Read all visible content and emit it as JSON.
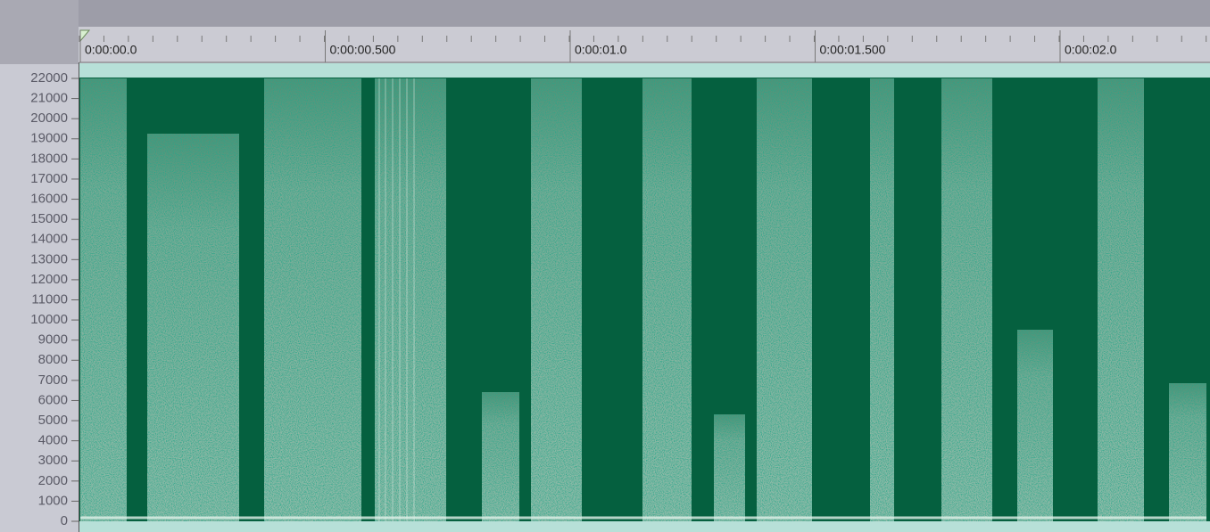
{
  "time_ruler": {
    "labels": [
      "0:00:00.0",
      "0:00:00.500",
      "0:00:01.0",
      "0:00:01.500",
      "0:00:02.0"
    ]
  },
  "frequency_axis": {
    "labels": [
      22000,
      21000,
      20000,
      19000,
      18000,
      17000,
      16000,
      15000,
      14000,
      13000,
      12000,
      11000,
      10000,
      9000,
      8000,
      7000,
      6000,
      5000,
      4000,
      3000,
      2000,
      1000,
      0
    ]
  }
}
